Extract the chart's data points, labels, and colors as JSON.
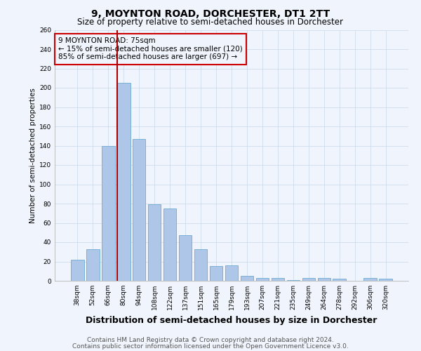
{
  "title": "9, MOYNTON ROAD, DORCHESTER, DT1 2TT",
  "subtitle": "Size of property relative to semi-detached houses in Dorchester",
  "xlabel": "Distribution of semi-detached houses by size in Dorchester",
  "ylabel": "Number of semi-detached properties",
  "footer1": "Contains HM Land Registry data © Crown copyright and database right 2024.",
  "footer2": "Contains public sector information licensed under the Open Government Licence v3.0.",
  "categories": [
    "38sqm",
    "52sqm",
    "66sqm",
    "80sqm",
    "94sqm",
    "108sqm",
    "122sqm",
    "137sqm",
    "151sqm",
    "165sqm",
    "179sqm",
    "193sqm",
    "207sqm",
    "221sqm",
    "235sqm",
    "249sqm",
    "264sqm",
    "278sqm",
    "292sqm",
    "306sqm",
    "320sqm"
  ],
  "values": [
    22,
    33,
    140,
    205,
    147,
    79,
    75,
    47,
    33,
    15,
    16,
    5,
    3,
    3,
    1,
    3,
    3,
    2,
    0,
    3,
    2
  ],
  "bar_color": "#aec6e8",
  "bar_edge_color": "#6aaad4",
  "highlight_line_color": "#aa0000",
  "annotation_box_text": "9 MOYNTON ROAD: 75sqm\n← 15% of semi-detached houses are smaller (120)\n85% of semi-detached houses are larger (697) →",
  "annotation_box_color": "#cc0000",
  "annotation_text_color": "#000000",
  "ylim": [
    0,
    260
  ],
  "yticks": [
    0,
    20,
    40,
    60,
    80,
    100,
    120,
    140,
    160,
    180,
    200,
    220,
    240,
    260
  ],
  "grid_color": "#c8d8e8",
  "background_color": "#f0f4fc",
  "title_fontsize": 10,
  "subtitle_fontsize": 8.5,
  "xlabel_fontsize": 9,
  "ylabel_fontsize": 7.5,
  "tick_fontsize": 6.5,
  "footer_fontsize": 6.5,
  "ann_fontsize": 7.5
}
